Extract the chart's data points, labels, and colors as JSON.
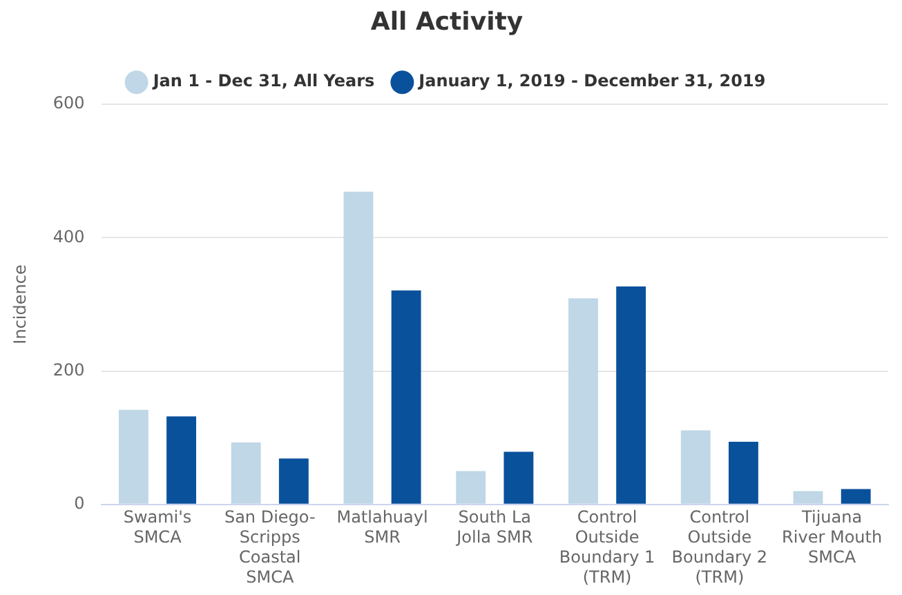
{
  "chart_data": {
    "type": "bar",
    "title": "All Activity",
    "ylabel": "Incidence",
    "categories": [
      "Swami's SMCA",
      "San Diego-Scripps Coastal SMCA",
      "Matlahuayl SMR",
      "South La Jolla SMR",
      "Control Outside Boundary 1 (TRM)",
      "Control Outside Boundary 2 (TRM)",
      "Tijuana River Mouth SMCA"
    ],
    "series": [
      {
        "name": "Jan 1 - Dec 31, All Years",
        "color": "#bfd7e6",
        "values": [
          142,
          93,
          469,
          50,
          309,
          111,
          20
        ]
      },
      {
        "name": "January 1, 2019 - December 31, 2019",
        "color": "#0a519c",
        "values": [
          132,
          69,
          321,
          79,
          327,
          94,
          23
        ]
      }
    ],
    "ylim": [
      0,
      600
    ],
    "yticks": [
      0,
      200,
      400,
      600
    ],
    "grid": "y",
    "legend": "top"
  }
}
